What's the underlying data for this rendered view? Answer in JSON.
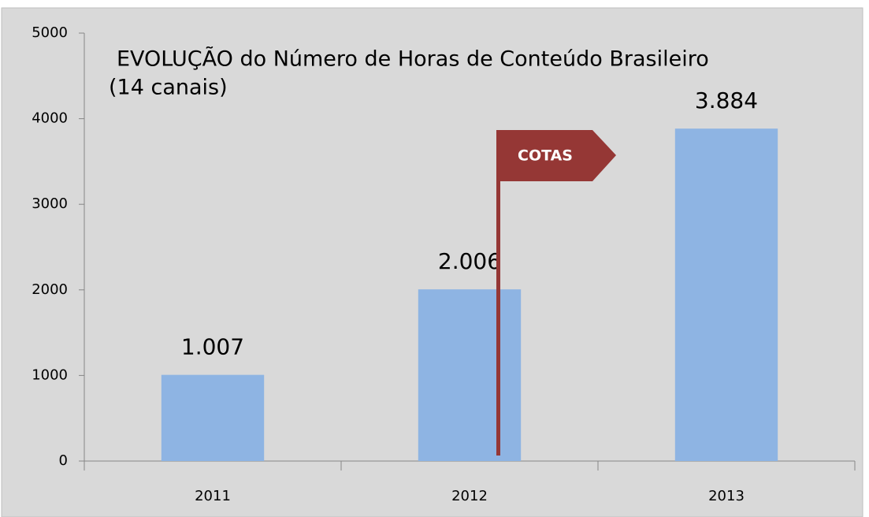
{
  "chart_data": {
    "type": "bar",
    "title": "EVOLUÇÃO do Número de Horas de Conteúdo Brasileiro",
    "subtitle": "(14 canais)",
    "annotation": "COTAS",
    "categories": [
      "2011",
      "2012",
      "2013"
    ],
    "values": [
      1007,
      2006,
      3884
    ],
    "value_labels": [
      "1.007",
      "2.006",
      "3.884"
    ],
    "color": "#8eb4e3",
    "ylim": [
      0,
      5000
    ],
    "yticks": [
      0,
      1000,
      2000,
      3000,
      4000,
      5000
    ],
    "grid": false
  }
}
